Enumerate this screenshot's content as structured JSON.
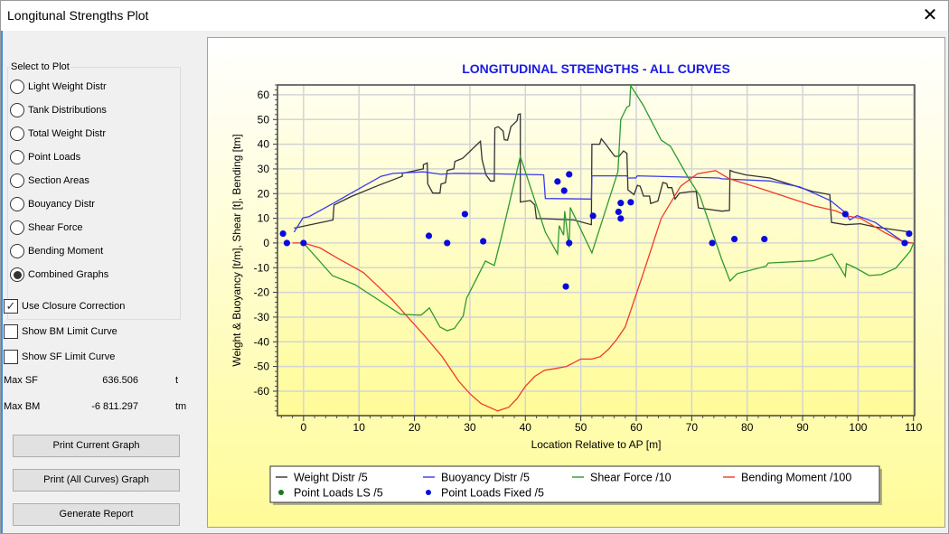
{
  "window": {
    "title": "Longitunal Strengths Plot",
    "close_label": "✕"
  },
  "panel": {
    "group_label": "Select to Plot",
    "radios": [
      {
        "label": "Light Weight Distr",
        "checked": false
      },
      {
        "label": "Tank Distributions",
        "checked": false
      },
      {
        "label": "Total Weight Distr",
        "checked": false
      },
      {
        "label": "Point Loads",
        "checked": false
      },
      {
        "label": "Section Areas",
        "checked": false
      },
      {
        "label": "Bouyancy Distr",
        "checked": false
      },
      {
        "label": "Shear Force",
        "checked": false
      },
      {
        "label": "Bending Moment",
        "checked": false
      },
      {
        "label": "Combined Graphs",
        "checked": true
      }
    ],
    "checkboxes": [
      {
        "label": "Use Closure Correction",
        "checked": true
      },
      {
        "label": "Show BM Limit Curve",
        "checked": false
      },
      {
        "label": "Show SF Limit Curve",
        "checked": false
      }
    ],
    "stats": [
      {
        "label": "Max SF",
        "value": "636.506",
        "unit": "t"
      },
      {
        "label": "Max BM",
        "value": "-6 811.297",
        "unit": "tm"
      }
    ],
    "buttons": [
      "Print Current Graph",
      "Print (All Curves) Graph",
      "Generate Report"
    ]
  },
  "chart_data": {
    "type": "line",
    "title": "LONGITUDINAL STRENGTHS - ALL CURVES",
    "xlabel": "Location Relative to AP [m]",
    "ylabel": "Weight & Buoyancy [t/m], Shear [t], Bending [tm]",
    "xlim": [
      -4.7,
      110.2
    ],
    "ylim": [
      -69.9,
      64
    ],
    "xticks": [
      0,
      10,
      20,
      30,
      40,
      50,
      60,
      70,
      80,
      90,
      100,
      110
    ],
    "yticks": [
      -60,
      -50,
      -40,
      -30,
      -20,
      -10,
      0,
      10,
      20,
      30,
      40,
      50,
      60
    ],
    "grid": true,
    "legend_position": "bottom",
    "series": [
      {
        "name": "Weight Distr /5",
        "color": "#333333",
        "kind": "line",
        "points": [
          [
            -1.7,
            6
          ],
          [
            5.3,
            9.3
          ],
          [
            5.5,
            15.4
          ],
          [
            8.6,
            18.8
          ],
          [
            13.5,
            23.3
          ],
          [
            17.8,
            27
          ],
          [
            17.8,
            28.2
          ],
          [
            21.6,
            30
          ],
          [
            21.6,
            31.7
          ],
          [
            22.3,
            32.4
          ],
          [
            22.4,
            23.9
          ],
          [
            23.3,
            20.2
          ],
          [
            24.6,
            20.2
          ],
          [
            24.8,
            23.9
          ],
          [
            25.6,
            24.4
          ],
          [
            25.9,
            29.4
          ],
          [
            27.1,
            30
          ],
          [
            27.3,
            33
          ],
          [
            28.7,
            34.3
          ],
          [
            31.9,
            41.2
          ],
          [
            32.2,
            33.7
          ],
          [
            32.9,
            27.6
          ],
          [
            33.7,
            25.1
          ],
          [
            34.4,
            25.1
          ],
          [
            34.5,
            46.5
          ],
          [
            35.1,
            47.1
          ],
          [
            36,
            45.3
          ],
          [
            36.2,
            41.8
          ],
          [
            36.8,
            41.6
          ],
          [
            37.4,
            47.1
          ],
          [
            38.5,
            49.5
          ],
          [
            38.7,
            52
          ],
          [
            39.1,
            52.3
          ],
          [
            39.1,
            16.6
          ],
          [
            40.9,
            17.2
          ],
          [
            41.7,
            15.4
          ],
          [
            42,
            9.9
          ],
          [
            42.8,
            9.9
          ],
          [
            48.8,
            9.3
          ],
          [
            51.9,
            7.4
          ],
          [
            52,
            40
          ],
          [
            53.4,
            40
          ],
          [
            53.7,
            42.2
          ],
          [
            54.5,
            40
          ],
          [
            56.1,
            35.1
          ],
          [
            56.9,
            35.1
          ],
          [
            57.7,
            37.3
          ],
          [
            58.3,
            36.3
          ],
          [
            58.5,
            21.5
          ],
          [
            59.6,
            19.6
          ],
          [
            60.2,
            23.3
          ],
          [
            60.7,
            23
          ],
          [
            61.3,
            19
          ],
          [
            62.4,
            19
          ],
          [
            62.6,
            16
          ],
          [
            63.9,
            17
          ],
          [
            64.8,
            24.5
          ],
          [
            65.5,
            24
          ],
          [
            65.7,
            22.4
          ],
          [
            66.4,
            22.4
          ],
          [
            67,
            17.8
          ],
          [
            67.8,
            20.2
          ],
          [
            69.4,
            20.7
          ],
          [
            70.8,
            20.9
          ],
          [
            71.2,
            14.2
          ],
          [
            75.4,
            12.9
          ],
          [
            76.8,
            13.2
          ],
          [
            76.9,
            29.4
          ],
          [
            77.6,
            28.8
          ],
          [
            79.7,
            27.6
          ],
          [
            84.1,
            26.3
          ],
          [
            88.4,
            23.3
          ],
          [
            91.7,
            20.9
          ],
          [
            94.9,
            19.6
          ],
          [
            95.2,
            8.3
          ],
          [
            97.7,
            7.4
          ],
          [
            100.4,
            7.8
          ],
          [
            103.1,
            6.5
          ],
          [
            105.8,
            5.6
          ],
          [
            109.4,
            4.4
          ]
        ]
      },
      {
        "name": "Buoyancy Distr /5",
        "color": "#3a3af0",
        "kind": "line",
        "points": [
          [
            -1.7,
            4.4
          ],
          [
            -0.1,
            10.2
          ],
          [
            1,
            10.7
          ],
          [
            5.3,
            16
          ],
          [
            8.6,
            20.2
          ],
          [
            14,
            27
          ],
          [
            16.2,
            28.2
          ],
          [
            21.6,
            28.8
          ],
          [
            24.8,
            27.8
          ],
          [
            27.1,
            28.2
          ],
          [
            32.6,
            28.1
          ],
          [
            43.3,
            27.6
          ],
          [
            43.6,
            18
          ],
          [
            51.9,
            17.8
          ],
          [
            52,
            27.2
          ],
          [
            58.3,
            27.2
          ],
          [
            58.5,
            26.3
          ],
          [
            59.9,
            26.3
          ],
          [
            60.2,
            27.2
          ],
          [
            74.9,
            26.3
          ],
          [
            75.4,
            26
          ],
          [
            84.1,
            25.1
          ],
          [
            89.5,
            22.7
          ],
          [
            95,
            17.2
          ],
          [
            97.7,
            12.3
          ],
          [
            98.5,
            9.3
          ],
          [
            99.8,
            11.1
          ],
          [
            103.1,
            8.3
          ],
          [
            108,
            0.7
          ],
          [
            109.6,
            0
          ]
        ]
      },
      {
        "name": "Shear Force /10",
        "color": "#2e9a2e",
        "kind": "line",
        "points": [
          [
            0,
            0
          ],
          [
            5.2,
            -13.2
          ],
          [
            9.3,
            -16.9
          ],
          [
            17.5,
            -28.9
          ],
          [
            21.2,
            -29.2
          ],
          [
            22.7,
            -26.3
          ],
          [
            24.6,
            -34
          ],
          [
            25.9,
            -35.5
          ],
          [
            27.2,
            -34.6
          ],
          [
            28.8,
            -29.6
          ],
          [
            29.4,
            -22.4
          ],
          [
            32.8,
            -7.3
          ],
          [
            34.4,
            -9.1
          ],
          [
            35.7,
            2.6
          ],
          [
            39.1,
            35
          ],
          [
            43.6,
            4.4
          ],
          [
            45.8,
            -4.4
          ],
          [
            46.1,
            7
          ],
          [
            46.9,
            3.2
          ],
          [
            47.1,
            12.9
          ],
          [
            47.9,
            -1.7
          ],
          [
            48.1,
            14.4
          ],
          [
            52,
            -4
          ],
          [
            56.7,
            28.9
          ],
          [
            57.2,
            50
          ],
          [
            58.3,
            55
          ],
          [
            58.8,
            55.6
          ],
          [
            59,
            63.7
          ],
          [
            61.3,
            55.6
          ],
          [
            64.5,
            41.7
          ],
          [
            66.2,
            39.1
          ],
          [
            69.4,
            26.3
          ],
          [
            71.5,
            19
          ],
          [
            75.4,
            -6.6
          ],
          [
            76.9,
            -15.4
          ],
          [
            78.2,
            -12.4
          ],
          [
            83.4,
            -9.4
          ],
          [
            83.8,
            -8.1
          ],
          [
            91.9,
            -7.2
          ],
          [
            95.3,
            -4.4
          ],
          [
            97.7,
            -13.5
          ],
          [
            97.9,
            -8.4
          ],
          [
            99.4,
            -9.9
          ],
          [
            102,
            -13.2
          ],
          [
            104.2,
            -12.8
          ],
          [
            106.8,
            -10.2
          ],
          [
            109.4,
            -3.3
          ],
          [
            110,
            0
          ]
        ]
      },
      {
        "name": "Bending Moment /100",
        "color": "#f03a2a",
        "kind": "line",
        "points": [
          [
            -2,
            0
          ],
          [
            0,
            0
          ],
          [
            3,
            -2
          ],
          [
            6,
            -6
          ],
          [
            10.8,
            -12
          ],
          [
            16,
            -23
          ],
          [
            22,
            -38
          ],
          [
            25,
            -46
          ],
          [
            28,
            -56
          ],
          [
            30,
            -61
          ],
          [
            32,
            -65
          ],
          [
            35,
            -68
          ],
          [
            37,
            -66.5
          ],
          [
            38.5,
            -63
          ],
          [
            40,
            -58
          ],
          [
            41.7,
            -54
          ],
          [
            43.5,
            -51.5
          ],
          [
            45,
            -51
          ],
          [
            47.4,
            -50
          ],
          [
            50,
            -47
          ],
          [
            52,
            -47
          ],
          [
            53.5,
            -46
          ],
          [
            55,
            -43
          ],
          [
            56.5,
            -39
          ],
          [
            58,
            -34
          ],
          [
            61.3,
            -12
          ],
          [
            64.5,
            10
          ],
          [
            68,
            23
          ],
          [
            71,
            28
          ],
          [
            74.3,
            29.3
          ],
          [
            76.8,
            26
          ],
          [
            82.5,
            22
          ],
          [
            92,
            15
          ],
          [
            96,
            13
          ],
          [
            98,
            11
          ],
          [
            100.4,
            10
          ],
          [
            105,
            4
          ],
          [
            108.5,
            0
          ],
          [
            110,
            0
          ]
        ]
      },
      {
        "name": "Point Loads LS /5",
        "color": "#1a7a1a",
        "kind": "scatter",
        "points": []
      },
      {
        "name": "Point Loads Fixed /5",
        "color": "#0a0adc",
        "kind": "scatter",
        "points": [
          [
            -3.7,
            3.8
          ],
          [
            -3,
            0
          ],
          [
            0,
            0
          ],
          [
            22.6,
            2.9
          ],
          [
            25.9,
            0
          ],
          [
            29.1,
            11.7
          ],
          [
            32.4,
            0.7
          ],
          [
            45.8,
            24.9
          ],
          [
            47,
            21.2
          ],
          [
            47.9,
            27.8
          ],
          [
            47.3,
            -17.6
          ],
          [
            47.9,
            0
          ],
          [
            52.2,
            11
          ],
          [
            56.8,
            12.6
          ],
          [
            57.2,
            16.2
          ],
          [
            57.2,
            9.9
          ],
          [
            59,
            16.5
          ],
          [
            73.7,
            0
          ],
          [
            77.7,
            1.6
          ],
          [
            83.1,
            1.6
          ],
          [
            97.7,
            11.7
          ],
          [
            108.4,
            0
          ],
          [
            109.2,
            3.8
          ]
        ]
      }
    ]
  }
}
